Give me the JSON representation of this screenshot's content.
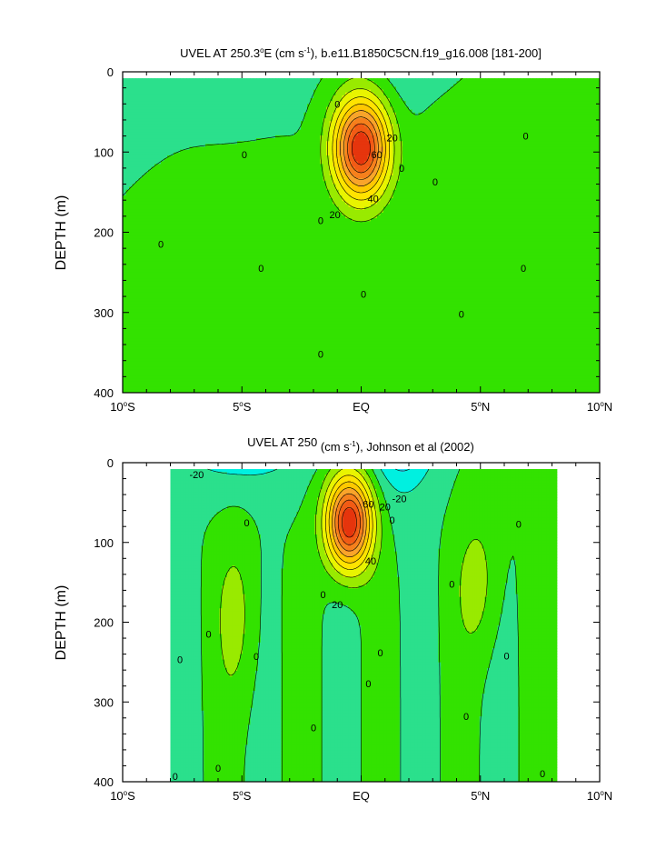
{
  "chart_data": [
    {
      "type": "heatmap",
      "subtype": "filled-contour",
      "title": "UVEL AT 250.3°E (cm s-1), b.e11.B1850C5CN.f19_g16.008 [181-200]",
      "title_parts": {
        "pre": "UVEL AT 250.3",
        "deg": "o",
        "mid": "E (cm s",
        "sup": "-1",
        "post": "), b.e11.B1850C5CN.f19_g16.008 [181-200]"
      },
      "xlabel": "",
      "ylabel": "DEPTH (m)",
      "xlim": [
        -10,
        10
      ],
      "ylim": [
        400,
        0
      ],
      "x_ticks": [
        {
          "v": -10,
          "num": "10",
          "deg": "o",
          "hem": "S"
        },
        {
          "v": -5,
          "num": "5",
          "deg": "o",
          "hem": "S"
        },
        {
          "v": 0,
          "num": "EQ",
          "deg": "",
          "hem": ""
        },
        {
          "v": 5,
          "num": "5",
          "deg": "o",
          "hem": "N"
        },
        {
          "v": 10,
          "num": "10",
          "deg": "o",
          "hem": "N"
        }
      ],
      "y_ticks": [
        0,
        100,
        200,
        300,
        400
      ],
      "contour_interval": 10,
      "core": {
        "lat": 0,
        "depth": 95,
        "max": 90
      },
      "contour_labels": [
        {
          "text": "0",
          "lat": -1,
          "depth": 40
        },
        {
          "text": "0",
          "lat": -4.9,
          "depth": 103
        },
        {
          "text": "0",
          "lat": -8.4,
          "depth": 215
        },
        {
          "text": "0",
          "lat": -4.2,
          "depth": 245
        },
        {
          "text": "0",
          "lat": -1.7,
          "depth": 185
        },
        {
          "text": "0",
          "lat": 0.1,
          "depth": 277
        },
        {
          "text": "0",
          "lat": -1.7,
          "depth": 352
        },
        {
          "text": "0",
          "lat": 1.7,
          "depth": 120
        },
        {
          "text": "0",
          "lat": 3.1,
          "depth": 137
        },
        {
          "text": "0",
          "lat": 4.2,
          "depth": 302
        },
        {
          "text": "0",
          "lat": 6.9,
          "depth": 80
        },
        {
          "text": "0",
          "lat": 6.8,
          "depth": 245
        },
        {
          "text": "20",
          "lat": 1.3,
          "depth": 82
        },
        {
          "text": "20",
          "lat": -1.1,
          "depth": 178
        },
        {
          "text": "40",
          "lat": 0.5,
          "depth": 158
        },
        {
          "text": "60",
          "lat": 0.65,
          "depth": 103
        }
      ]
    },
    {
      "type": "heatmap",
      "subtype": "filled-contour",
      "title": "UVEL AT 250 (cm s-1), Johnson et al (2002)",
      "title_parts": {
        "pre": "UVEL AT 250",
        "deg": "",
        "mid": " (cm s",
        "sup": "-1",
        "post": "), Johnson et al (2002)"
      },
      "xlabel": "",
      "ylabel": "DEPTH (m)",
      "xlim": [
        -10,
        10
      ],
      "ylim": [
        400,
        0
      ],
      "x_ticks": [
        {
          "v": -10,
          "num": "10",
          "deg": "o",
          "hem": "S"
        },
        {
          "v": -5,
          "num": "5",
          "deg": "o",
          "hem": "S"
        },
        {
          "v": 0,
          "num": "EQ",
          "deg": "",
          "hem": ""
        },
        {
          "v": 5,
          "num": "5",
          "deg": "o",
          "hem": "N"
        },
        {
          "v": 10,
          "num": "10",
          "deg": "o",
          "hem": "N"
        }
      ],
      "y_ticks": [
        0,
        100,
        200,
        300,
        400
      ],
      "contour_interval": 10,
      "core": {
        "lat": -0.5,
        "depth": 75,
        "max": 90
      },
      "data_extent": {
        "lat": [
          -8,
          8.2
        ],
        "depth": [
          8,
          400
        ]
      },
      "contour_labels": [
        {
          "text": "-20",
          "lat": -6.9,
          "depth": 15
        },
        {
          "text": "-20",
          "lat": 1.6,
          "depth": 45
        },
        {
          "text": "20",
          "lat": 1.0,
          "depth": 55
        },
        {
          "text": "60",
          "lat": 0.3,
          "depth": 52
        },
        {
          "text": "40",
          "lat": 0.4,
          "depth": 123
        },
        {
          "text": "20",
          "lat": -1.0,
          "depth": 178
        },
        {
          "text": "0",
          "lat": -4.8,
          "depth": 75
        },
        {
          "text": "0",
          "lat": -6.4,
          "depth": 215
        },
        {
          "text": "0",
          "lat": -7.6,
          "depth": 247
        },
        {
          "text": "0",
          "lat": -4.4,
          "depth": 243
        },
        {
          "text": "0",
          "lat": -6.0,
          "depth": 383
        },
        {
          "text": "0",
          "lat": -7.8,
          "depth": 393
        },
        {
          "text": "0",
          "lat": -1.6,
          "depth": 165
        },
        {
          "text": "0",
          "lat": -2.0,
          "depth": 332
        },
        {
          "text": "0",
          "lat": 0.3,
          "depth": 277
        },
        {
          "text": "0",
          "lat": 0.8,
          "depth": 238
        },
        {
          "text": "0",
          "lat": 1.3,
          "depth": 72
        },
        {
          "text": "0",
          "lat": 3.8,
          "depth": 152
        },
        {
          "text": "0",
          "lat": 4.4,
          "depth": 318
        },
        {
          "text": "0",
          "lat": 6.1,
          "depth": 242
        },
        {
          "text": "0",
          "lat": 6.6,
          "depth": 77
        },
        {
          "text": "0",
          "lat": 7.6,
          "depth": 390
        }
      ]
    }
  ],
  "colors": {
    "positive_levels": [
      "#33E200",
      "#99EA00",
      "#E9F400",
      "#FFE300",
      "#FFC800",
      "#F9A42B",
      "#F6801C",
      "#F25B15",
      "#E6350D",
      "#C71810"
    ],
    "neutral": "#2BE08C",
    "negative_levels": [
      "#00F0E0",
      "#33D4F5",
      "#1AA8E9",
      "#0C7FE0"
    ],
    "missing": "#ffffff",
    "contour_line": "#000000"
  }
}
